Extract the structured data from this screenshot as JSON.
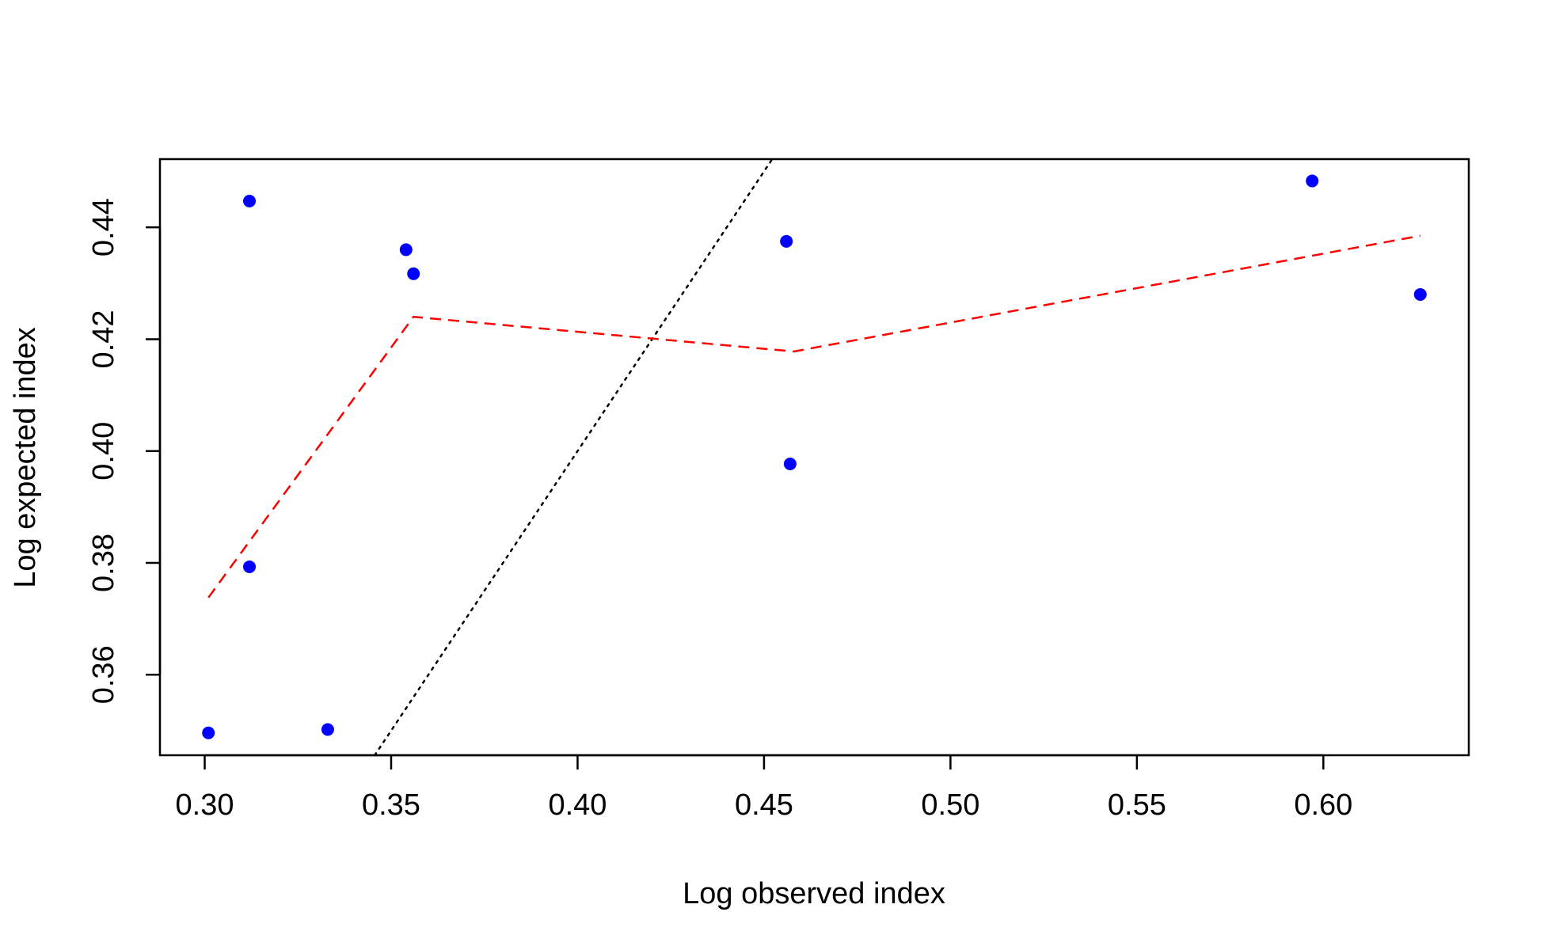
{
  "chart_data": {
    "type": "scatter",
    "title": "",
    "xlabel": "Log observed index",
    "ylabel": "Log expected index",
    "xlim": [
      0.288,
      0.639
    ],
    "ylim": [
      0.3456,
      0.4522
    ],
    "x_ticks": [
      {
        "value": 0.3,
        "label": "0.30"
      },
      {
        "value": 0.35,
        "label": "0.35"
      },
      {
        "value": 0.4,
        "label": "0.40"
      },
      {
        "value": 0.45,
        "label": "0.45"
      },
      {
        "value": 0.5,
        "label": "0.50"
      },
      {
        "value": 0.55,
        "label": "0.55"
      },
      {
        "value": 0.6,
        "label": "0.60"
      }
    ],
    "y_ticks": [
      {
        "value": 0.36,
        "label": "0.36"
      },
      {
        "value": 0.38,
        "label": "0.38"
      },
      {
        "value": 0.4,
        "label": "0.40"
      },
      {
        "value": 0.42,
        "label": "0.42"
      },
      {
        "value": 0.44,
        "label": "0.44"
      }
    ],
    "grid": false,
    "points": {
      "color": "#0000ff",
      "x": [
        0.301,
        0.312,
        0.312,
        0.333,
        0.354,
        0.356,
        0.456,
        0.457,
        0.597,
        0.626
      ],
      "y": [
        0.3496,
        0.3793,
        0.4447,
        0.3502,
        0.436,
        0.4317,
        0.4375,
        0.3977,
        0.4483,
        0.428
      ]
    },
    "trend_line": {
      "color": "#ff0000",
      "style": "dashed",
      "x": [
        0.301,
        0.356,
        0.458,
        0.626
      ],
      "y": [
        0.3738,
        0.424,
        0.4178,
        0.4385
      ]
    },
    "identity_line": {
      "color": "#000000",
      "style": "dotted",
      "x": [
        0.3456,
        0.4522
      ],
      "y": [
        0.3456,
        0.4522
      ]
    }
  }
}
